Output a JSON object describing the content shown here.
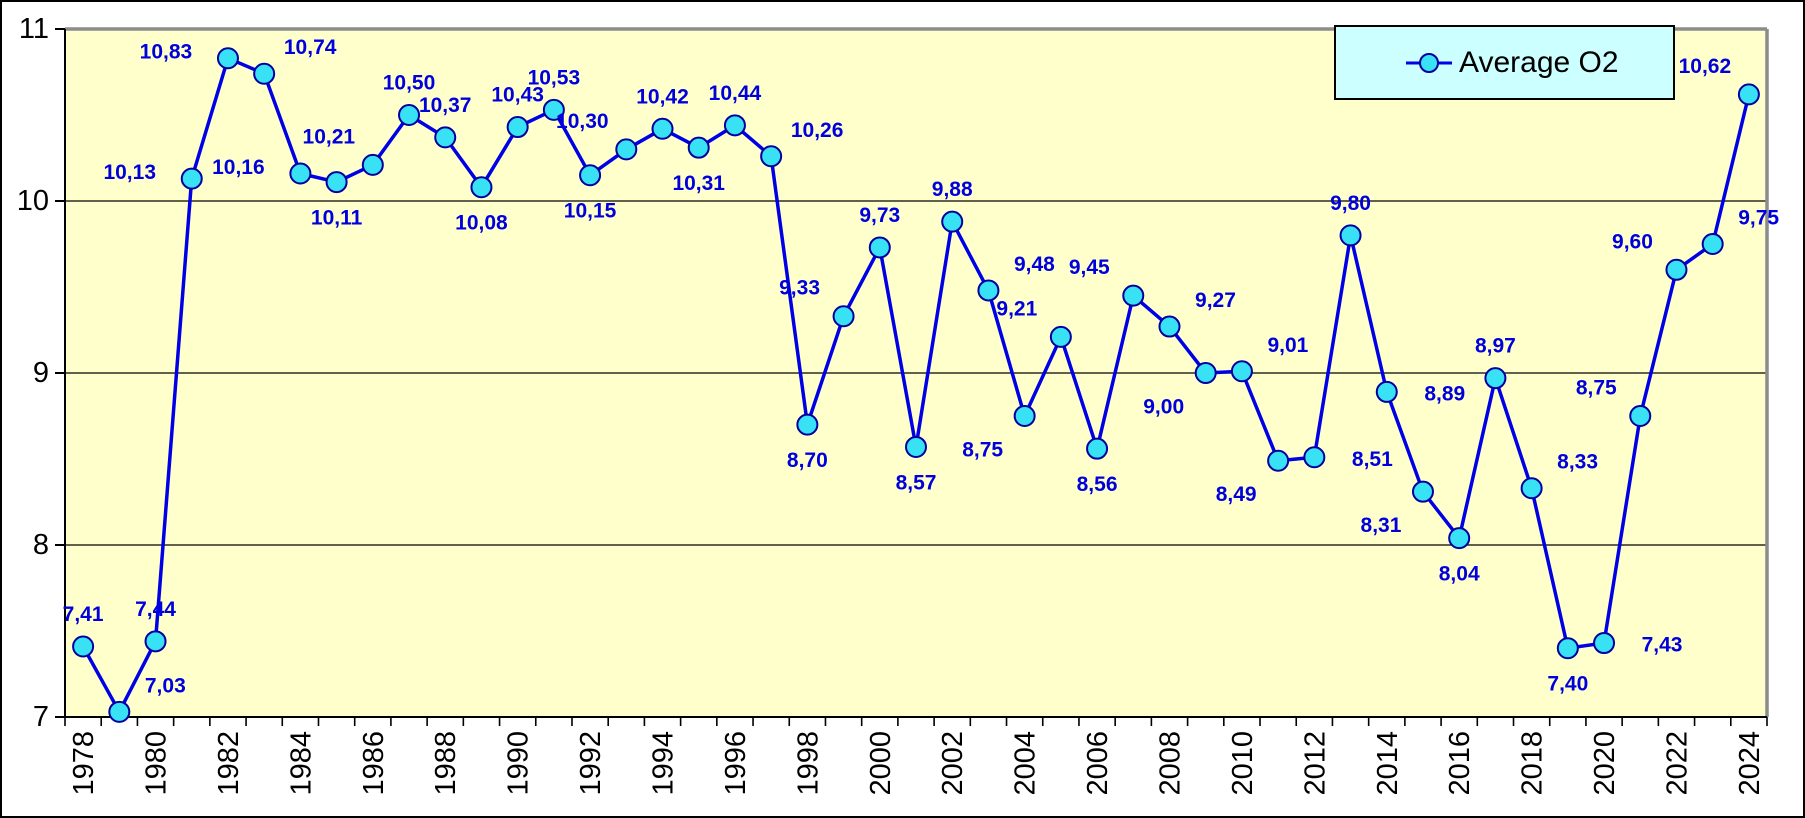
{
  "chart_data": {
    "type": "line",
    "title": "",
    "xlabel": "",
    "ylabel": "",
    "legend": {
      "label": "Average O2",
      "position": "top-right"
    },
    "x": [
      1978,
      1979,
      1980,
      1981,
      1982,
      1983,
      1984,
      1985,
      1986,
      1987,
      1988,
      1989,
      1990,
      1991,
      1992,
      1993,
      1994,
      1995,
      1996,
      1997,
      1998,
      1999,
      2000,
      2001,
      2002,
      2003,
      2004,
      2005,
      2006,
      2007,
      2008,
      2009,
      2010,
      2011,
      2012,
      2013,
      2014,
      2015,
      2016,
      2017,
      2018,
      2019,
      2020,
      2021,
      2022,
      2023,
      2024
    ],
    "series": [
      {
        "name": "Average O2",
        "values": [
          7.41,
          7.03,
          7.44,
          10.13,
          10.83,
          10.74,
          10.16,
          10.11,
          10.21,
          10.5,
          10.37,
          10.08,
          10.43,
          10.53,
          10.15,
          10.3,
          10.42,
          10.31,
          10.44,
          10.26,
          8.7,
          9.33,
          9.73,
          8.57,
          9.88,
          9.48,
          8.75,
          9.21,
          8.56,
          9.45,
          9.27,
          9.0,
          9.01,
          8.49,
          8.51,
          9.8,
          8.89,
          8.31,
          8.04,
          8.97,
          8.33,
          7.4,
          7.43,
          8.75,
          9.6,
          9.75,
          10.62
        ]
      }
    ],
    "value_labels": [
      "7,41",
      "7,03",
      "7,44",
      "10,13",
      "10,83",
      "10,74",
      "10,16",
      "10,11",
      "10,21",
      "10,50",
      "10,37",
      "10,08",
      "10,43",
      "10,53",
      "10,15",
      "10,30",
      "10,42",
      "10,31",
      "10,44",
      "10,26",
      "8,70",
      "9,33",
      "9,73",
      "8,57",
      "9,88",
      "9,48",
      "8,75",
      "9,21",
      "8,56",
      "9,45",
      "9,27",
      "9,00",
      "9,01",
      "8,49",
      "8,51",
      "9,80",
      "8,89",
      "8,31",
      "8,04",
      "8,97",
      "8,33",
      "7,40",
      "7,43",
      "8,75",
      "9,60",
      "9,75",
      "10,62"
    ],
    "label_placements": [
      "above",
      "above-right",
      "above",
      "left",
      "left",
      "above-right",
      "left",
      "below",
      "above-left",
      "above",
      "above",
      "below",
      "above",
      "above",
      "below",
      "above-left",
      "above",
      "below",
      "above",
      "above-right",
      "below",
      "above-left",
      "above",
      "below",
      "above",
      "above-right",
      "below-left",
      "above-left",
      "below",
      "above-left",
      "above-right",
      "below-left",
      "above-right",
      "below-left",
      "right",
      "above",
      "right",
      "below-left",
      "below",
      "above",
      "above-right",
      "below",
      "right",
      "above-left",
      "above-left",
      "above-right",
      "above-left"
    ],
    "decimal_separator": ",",
    "y_ticks": [
      7,
      8,
      9,
      10,
      11
    ],
    "ylim": [
      7,
      11
    ],
    "x_tick_label_step": 2,
    "grid": "horizontal",
    "colors": {
      "line": "#0000E6",
      "marker_fill": "#38E1F4",
      "marker_border": "#0000A0",
      "data_label": "#0000DD",
      "plot_bg": "#FFFFCC",
      "plot_border": "#8C8C8C",
      "axis": "#000000",
      "legend_bg": "#CCFFFF",
      "outer_bg": "#FFFFFF"
    }
  }
}
